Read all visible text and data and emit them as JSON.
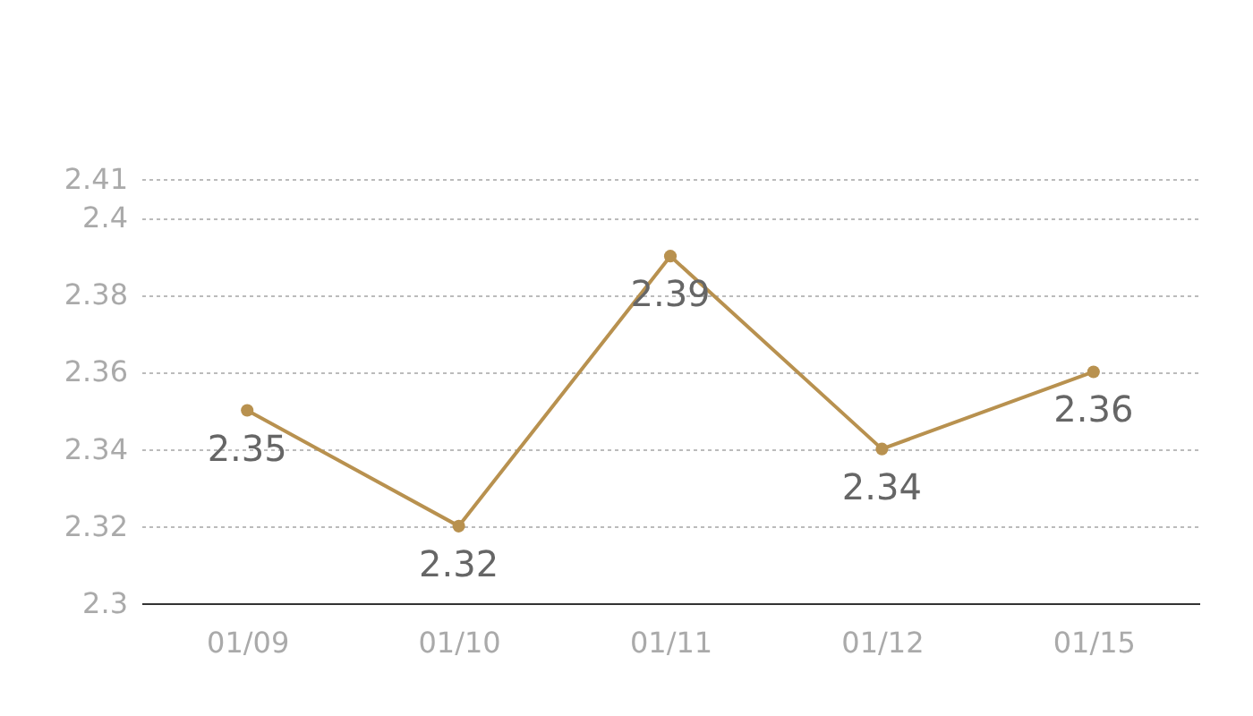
{
  "chart_data": {
    "type": "line",
    "categories": [
      "01/09",
      "01/10",
      "01/11",
      "01/12",
      "01/15"
    ],
    "series": [
      {
        "color": "#b8914f",
        "values": [
          2.35,
          2.32,
          2.39,
          2.34,
          2.36
        ]
      }
    ],
    "ylim": [
      2.3,
      2.41
    ],
    "yticks": [
      2.3,
      2.32,
      2.34,
      2.36,
      2.38,
      2.4,
      2.41
    ],
    "grid": "y",
    "data_labels": true,
    "marker": "circle",
    "line_style": "solid"
  }
}
